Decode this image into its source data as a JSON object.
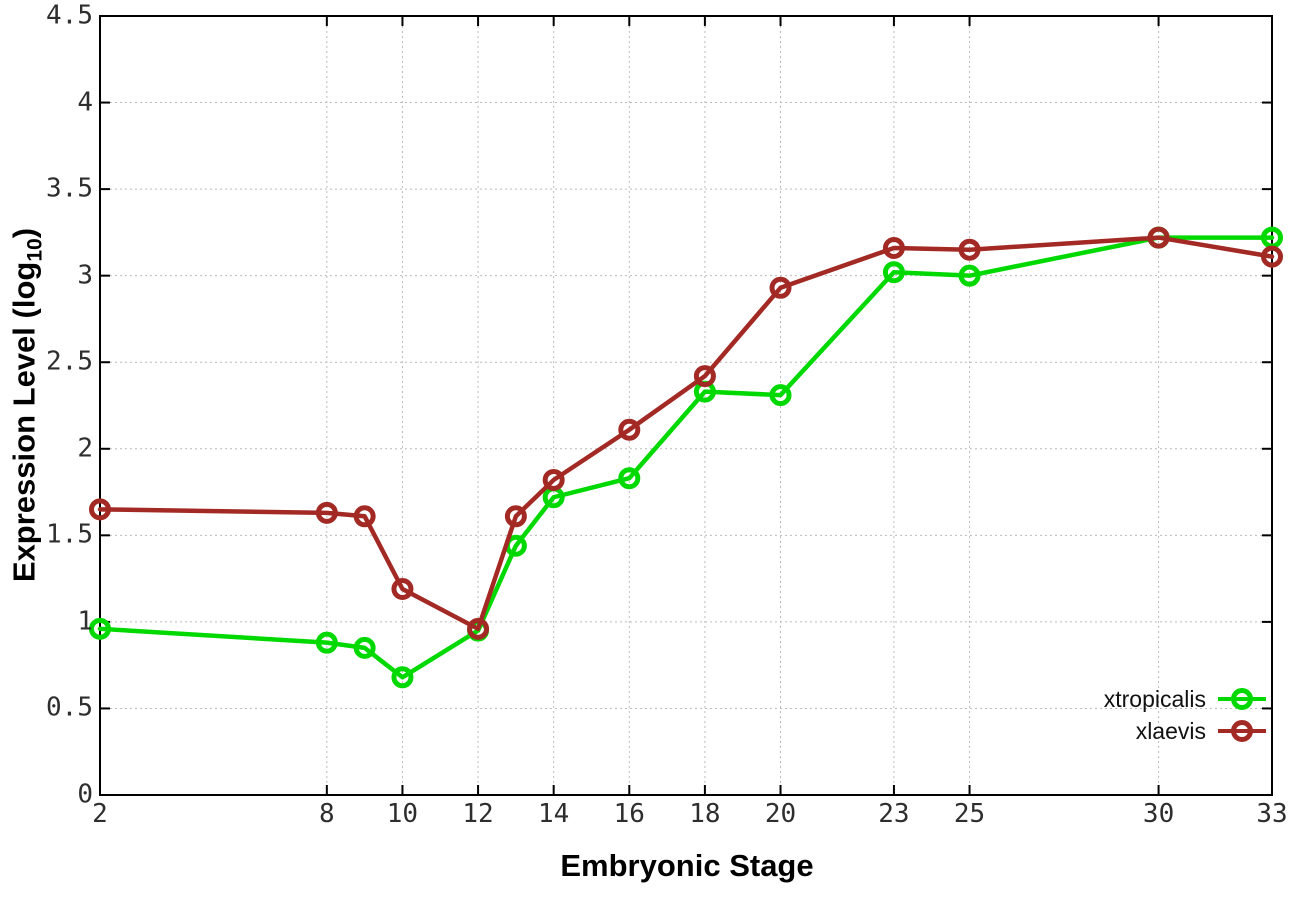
{
  "figure": {
    "background": "#ffffff",
    "border_color": "#000000",
    "grid_color": "#bcbcbc",
    "tick_text_color": "#2e2e2e",
    "xlabel": "Embryonic Stage",
    "ylabel_pre": "Expression Level (log",
    "ylabel_sub": "10",
    "ylabel_post": ")"
  },
  "chart_data": {
    "type": "line",
    "title": "",
    "xlabel": "Embryonic Stage",
    "ylabel": "Expression Level (log10)",
    "xlim": [
      2,
      33
    ],
    "ylim": [
      0,
      4.5
    ],
    "grid": true,
    "legend_position": "inside-bottom-right",
    "marker": "open-circle",
    "x": [
      2,
      8,
      9,
      10,
      12,
      13,
      14,
      16,
      18,
      20,
      23,
      25,
      30,
      33
    ],
    "x_tick_values": [
      2,
      8,
      10,
      12,
      14,
      16,
      18,
      20,
      23,
      25,
      30,
      33
    ],
    "x_tick_labels": [
      "2",
      "8",
      "10",
      "12",
      "14",
      "16",
      "18",
      "20",
      "23",
      "25",
      "30",
      "33"
    ],
    "y_tick_values": [
      0,
      0.5,
      1,
      1.5,
      2,
      2.5,
      3,
      3.5,
      4,
      4.5
    ],
    "y_tick_labels": [
      "0",
      "0.5",
      "1",
      "1.5",
      "2",
      "2.5",
      "3",
      "3.5",
      "4",
      "4.5"
    ],
    "series": [
      {
        "name": "xtropicalis",
        "color": "#00d900",
        "values": [
          0.96,
          0.88,
          0.85,
          0.68,
          0.95,
          1.44,
          1.72,
          1.83,
          2.33,
          2.31,
          3.02,
          3.0,
          3.22,
          3.22
        ]
      },
      {
        "name": "xlaevis",
        "color": "#a32a24",
        "values": [
          1.65,
          1.63,
          1.61,
          1.19,
          0.96,
          1.61,
          1.82,
          2.11,
          2.42,
          2.93,
          3.16,
          3.15,
          3.22,
          3.11
        ]
      }
    ]
  }
}
